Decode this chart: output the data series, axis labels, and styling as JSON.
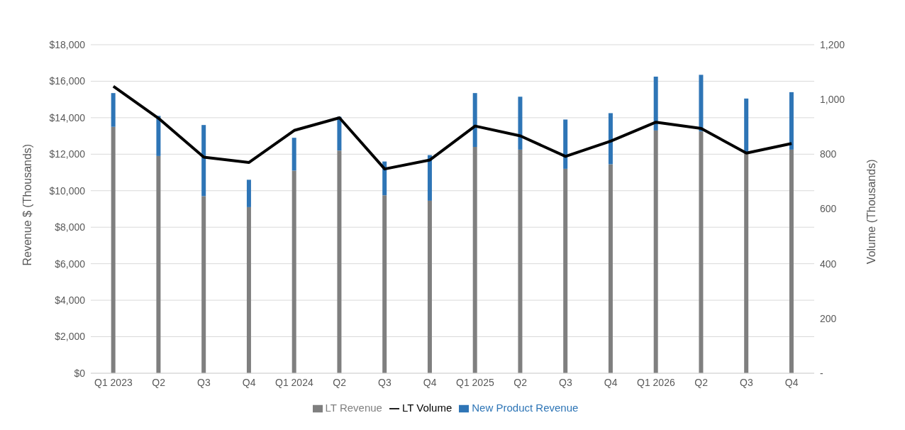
{
  "chart_data": {
    "type": "bar",
    "stacked": true,
    "categories": [
      "Q1 2023",
      "Q2",
      "Q3",
      "Q4",
      "Q1 2024",
      "Q2",
      "Q3",
      "Q4",
      "Q1 2025",
      "Q2",
      "Q3",
      "Q4",
      "Q1 2026",
      "Q2",
      "Q3",
      "Q4"
    ],
    "series": [
      {
        "name": "LT Revenue",
        "color": "#7f7f7f",
        "values": [
          13500,
          11900,
          9700,
          9100,
          11100,
          12200,
          9750,
          9450,
          12400,
          12250,
          11200,
          11450,
          13300,
          13250,
          12050,
          12250
        ]
      },
      {
        "name": "New Product Revenue",
        "color": "#2e75b6",
        "values": [
          1850,
          2200,
          3900,
          1500,
          1800,
          1850,
          1850,
          2500,
          2950,
          2900,
          2700,
          2800,
          2950,
          3100,
          3000,
          3150
        ]
      },
      {
        "name": "LT Volume",
        "type": "line",
        "axis": "y2",
        "color": "#000000",
        "values": [
          1048,
          931,
          789,
          770,
          887,
          933,
          746,
          779,
          903,
          867,
          792,
          848,
          917,
          894,
          804,
          839
        ]
      }
    ],
    "ylabel": "Revenue $ (Thousands)",
    "y2label": "Volume (Thousands)",
    "ylim": [
      0,
      18000
    ],
    "yticks": [
      {
        "value": 0,
        "label": "$0"
      },
      {
        "value": 2000,
        "label": "$2,000"
      },
      {
        "value": 4000,
        "label": "$4,000"
      },
      {
        "value": 6000,
        "label": "$6,000"
      },
      {
        "value": 8000,
        "label": "$8,000"
      },
      {
        "value": 10000,
        "label": "$10,000"
      },
      {
        "value": 12000,
        "label": "$12,000"
      },
      {
        "value": 14000,
        "label": "$14,000"
      },
      {
        "value": 16000,
        "label": "$16,000"
      },
      {
        "value": 18000,
        "label": "$18,000"
      }
    ],
    "y2lim": [
      0,
      1200
    ],
    "y2ticks": [
      {
        "value": 0,
        "label": "-"
      },
      {
        "value": 200,
        "label": "200"
      },
      {
        "value": 400,
        "label": "400"
      },
      {
        "value": 600,
        "label": "600"
      },
      {
        "value": 800,
        "label": "800"
      },
      {
        "value": 1000,
        "label": "1,000"
      },
      {
        "value": 1200,
        "label": "1,200"
      }
    ],
    "grid": "y",
    "legend": "bottom",
    "marker": "none",
    "line_style": "solid"
  }
}
